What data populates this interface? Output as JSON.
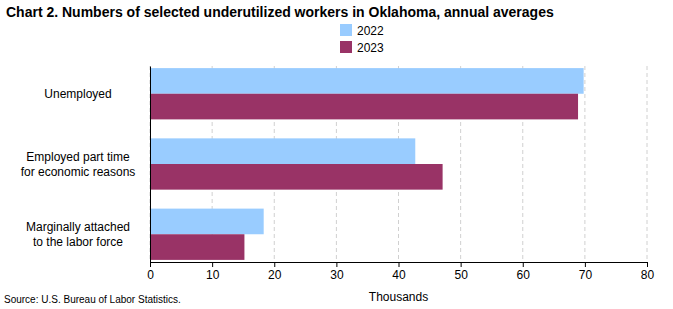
{
  "chart_data": {
    "type": "bar",
    "orientation": "horizontal",
    "title": "Chart 2. Numbers of selected underutilized workers in Oklahoma, annual averages",
    "categories": [
      "Unemployed",
      "Employed part time\nfor economic reasons",
      "Marginally attached\nto the labor force"
    ],
    "series": [
      {
        "name": "2022",
        "color": "#99ccff",
        "values": [
          69.8,
          42.7,
          18.3
        ]
      },
      {
        "name": "2023",
        "color": "#993366",
        "values": [
          68.9,
          47.1,
          15.2
        ]
      }
    ],
    "xlabel": "Thousands",
    "xlim": [
      0,
      80
    ],
    "xticks": [
      0,
      10,
      20,
      30,
      40,
      50,
      60,
      70,
      80
    ],
    "grid": true,
    "legend": "top",
    "source": "Source: U.S. Bureau of Labor Statistics."
  }
}
